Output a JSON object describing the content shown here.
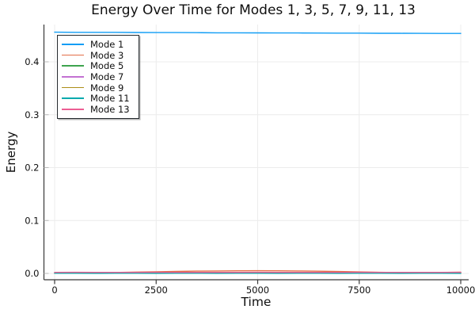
{
  "chart_data": {
    "type": "line",
    "title": "Energy Over Time for Modes 1, 3, 5, 7, 9, 11, 13",
    "xlabel": "Time",
    "ylabel": "Energy",
    "xlim": [
      -300,
      10300
    ],
    "ylim": [
      -0.012,
      0.47
    ],
    "xticks": [
      0,
      2500,
      5000,
      7500,
      10000
    ],
    "yticks": [
      0.0,
      0.1,
      0.2,
      0.3,
      0.4
    ],
    "grid": true,
    "legend_position": "top-left",
    "x": [
      0,
      500,
      1000,
      1500,
      2000,
      2500,
      3000,
      3500,
      4000,
      4500,
      5000,
      5500,
      6000,
      6500,
      7000,
      7500,
      8000,
      8500,
      9000,
      9500,
      10000
    ],
    "series": [
      {
        "name": "Mode 1",
        "color": "#109DF5",
        "values": [
          0.456,
          0.4558,
          0.4557,
          0.4557,
          0.4555,
          0.4553,
          0.4553,
          0.4551,
          0.4549,
          0.4549,
          0.4547,
          0.4546,
          0.4546,
          0.4544,
          0.4542,
          0.4542,
          0.454,
          0.4539,
          0.4538,
          0.4537,
          0.4536
        ]
      },
      {
        "name": "Mode 3",
        "color": "#E26E47",
        "values": [
          0.0005,
          0.0008,
          0.0012,
          0.0018,
          0.0025,
          0.0032,
          0.0038,
          0.0043,
          0.0047,
          0.005,
          0.0051,
          0.005,
          0.0047,
          0.0042,
          0.0036,
          0.0028,
          0.0021,
          0.0016,
          0.0014,
          0.0018,
          0.0024
        ]
      },
      {
        "name": "Mode 5",
        "color": "#3EA44E",
        "values": [
          0.0008,
          0.0009,
          0.0008,
          0.0007,
          0.0008,
          0.0009,
          0.0008,
          0.0008,
          0.0007,
          0.0008,
          0.0009,
          0.0008,
          0.0007,
          0.0008,
          0.0008,
          0.0009,
          0.0008,
          0.0007,
          0.0008,
          0.0008,
          0.0009
        ]
      },
      {
        "name": "Mode 7",
        "color": "#C371D2",
        "values": [
          0.0005,
          0.0006,
          0.0005,
          0.0004,
          0.0005,
          0.0006,
          0.0005,
          0.0005,
          0.0004,
          0.0005,
          0.0006,
          0.0005,
          0.0004,
          0.0005,
          0.0005,
          0.0006,
          0.0005,
          0.0004,
          0.0005,
          0.0005,
          0.0006
        ]
      },
      {
        "name": "Mode 9",
        "color": "#AC8E18",
        "values": [
          0.0004,
          0.0004,
          0.0003,
          0.0004,
          0.0004,
          0.0003,
          0.0004,
          0.0004,
          0.0003,
          0.0004,
          0.0004,
          0.0003,
          0.0004,
          0.0004,
          0.0003,
          0.0004,
          0.0004,
          0.0003,
          0.0004,
          0.0004,
          0.0003
        ]
      },
      {
        "name": "Mode 11",
        "color": "#00AAAE",
        "values": [
          0.0003,
          0.0003,
          0.0002,
          0.0003,
          0.0003,
          0.0002,
          0.0003,
          0.0003,
          0.0002,
          0.0003,
          0.0003,
          0.0002,
          0.0003,
          0.0003,
          0.0002,
          0.0003,
          0.0003,
          0.0002,
          0.0003,
          0.0003,
          0.0002
        ]
      },
      {
        "name": "Mode 13",
        "color": "#ED5E93",
        "values": [
          0.002,
          0.0021,
          0.002,
          0.0019,
          0.002,
          0.0021,
          0.002,
          0.002,
          0.0019,
          0.002,
          0.0021,
          0.002,
          0.0019,
          0.002,
          0.002,
          0.0021,
          0.002,
          0.0019,
          0.002,
          0.002,
          0.0021
        ]
      }
    ],
    "colors": {
      "grid": "#ececec",
      "spine": "#383838",
      "tick_text": "#0f0f0f",
      "background": "#ffffff",
      "legend_border": "#24292d"
    }
  }
}
